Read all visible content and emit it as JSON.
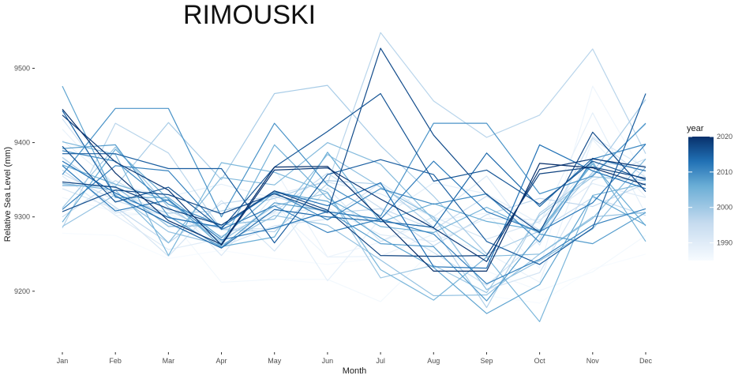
{
  "chart_data": {
    "type": "line",
    "title": "RIMOUSKI",
    "xlabel": "Month",
    "ylabel": "Relative Sea Level (mm)",
    "categories": [
      "Jan",
      "Feb",
      "Mar",
      "Apr",
      "May",
      "Jun",
      "Jul",
      "Aug",
      "Sep",
      "Oct",
      "Nov",
      "Dec"
    ],
    "ylim": [
      9135,
      9560
    ],
    "yticks": [
      9200,
      9300,
      9400,
      9500
    ],
    "grid": false,
    "legend": {
      "title": "year",
      "position": "right",
      "type": "colorbar",
      "range": [
        1985,
        2020
      ],
      "ticks": [
        1990,
        2000,
        2010,
        2020
      ],
      "color_low": "#f7fbff",
      "color_high": "#08306b"
    },
    "series": [
      {
        "year": 1985,
        "values": [
          9278,
          9275,
          9244,
          9255,
          9244,
          9236,
          9245,
          9245,
          9194,
          9184,
          9230,
          9250
        ]
      },
      {
        "year": 1986,
        "values": [
          9326,
          9307,
          9300,
          9212,
          9216,
          9216,
          9186,
          9256,
          9227,
          9201,
          9226,
          9275
        ]
      },
      {
        "year": 1987,
        "values": [
          9380,
          9302,
          9305,
          9268,
          9313,
          9246,
          9266,
          9295,
          9305,
          9231,
          9476,
          9353
        ]
      },
      {
        "year": 1988,
        "values": [
          9418,
          9342,
          9289,
          9265,
          9365,
          9246,
          9247,
          9277,
          9252,
          9212,
          9404,
          9327
        ]
      },
      {
        "year": 1989,
        "values": [
          9403,
          9344,
          9327,
          9344,
          9325,
          9214,
          9298,
          9346,
          9331,
          9291,
          9440,
          9304
        ]
      },
      {
        "year": 1990,
        "values": [
          9355,
          9302,
          9256,
          9271,
          9305,
          9312,
          9276,
          9267,
          9298,
          9296,
          9345,
          9326
        ]
      },
      {
        "year": 1991,
        "values": [
          9370,
          9305,
          9322,
          9248,
          9330,
          9347,
          9331,
          9300,
          9355,
          9262,
          9408,
          9366
        ]
      },
      {
        "year": 1992,
        "values": [
          9338,
          9311,
          9247,
          9322,
          9254,
          9339,
          9267,
          9300,
          9270,
          9294,
          9372,
          9369
        ]
      },
      {
        "year": 1993,
        "values": [
          9432,
          9338,
          9300,
          9260,
          9288,
          9297,
          9346,
          9299,
          9202,
          9225,
          9349,
          9378
        ]
      },
      {
        "year": 1994,
        "values": [
          9358,
          9322,
          9300,
          9284,
          9284,
          9307,
          9295,
          9252,
          9208,
          9270,
          9406,
          9353
        ]
      },
      {
        "year": 1995,
        "values": [
          9300,
          9349,
          9309,
          9274,
          9307,
          9359,
          9312,
          9283,
          9328,
          9282,
          9326,
          9302
        ]
      },
      {
        "year": 1996,
        "values": [
          9363,
          9313,
          9265,
          9318,
          9328,
          9305,
          9311,
          9261,
          9303,
          9325,
          9314,
          9345
        ]
      },
      {
        "year": 1997,
        "values": [
          9285,
          9426,
          9386,
          9283,
          9280,
          9345,
          9548,
          9456,
          9407,
          9437,
          9526,
          9385
        ]
      },
      {
        "year": 1998,
        "values": [
          9380,
          9327,
          9305,
          9308,
          9325,
          9349,
          9344,
          9286,
          9178,
          9305,
          9357,
          9425
        ]
      },
      {
        "year": 1999,
        "values": [
          9343,
          9341,
          9427,
          9350,
          9466,
          9477,
          9396,
          9328,
          9250,
          9281,
          9360,
          9458
        ]
      },
      {
        "year": 2000,
        "values": [
          9312,
          9394,
          9313,
          9267,
          9315,
          9332,
          9218,
          9235,
          9198,
          9302,
          9354,
          9349
        ]
      },
      {
        "year": 2001,
        "values": [
          9287,
          9330,
          9280,
          9262,
          9302,
          9289,
          9242,
          9194,
          9195,
          9250,
          9300,
          9306
        ]
      },
      {
        "year": 2002,
        "values": [
          9342,
          9341,
          9287,
          9289,
          9297,
          9384,
          9340,
          9300,
          9202,
          9241,
          9284,
          9367
        ]
      },
      {
        "year": 2003,
        "values": [
          9345,
          9336,
          9265,
          9353,
          9343,
          9400,
          9371,
          9296,
          9247,
          9250,
          9298,
          9378
        ]
      },
      {
        "year": 2004,
        "values": [
          9401,
          9384,
          9248,
          9373,
          9360,
          9333,
          9229,
          9188,
          9246,
          9159,
          9329,
          9345
        ]
      },
      {
        "year": 2005,
        "values": [
          9370,
          9344,
          9322,
          9264,
          9397,
          9325,
          9287,
          9279,
          9313,
          9278,
          9374,
          9267
        ]
      },
      {
        "year": 2006,
        "values": [
          9293,
          9391,
          9324,
          9260,
          9273,
          9387,
          9293,
          9318,
          9294,
          9282,
          9371,
          9288
        ]
      },
      {
        "year": 2007,
        "values": [
          9476,
          9326,
          9326,
          9272,
          9333,
          9321,
          9272,
          9232,
          9170,
          9209,
          9328,
          9289
        ]
      },
      {
        "year": 2008,
        "values": [
          9392,
          9397,
          9301,
          9259,
          9319,
          9308,
          9264,
          9260,
          9187,
          9277,
          9264,
          9306
        ]
      },
      {
        "year": 2009,
        "values": [
          9357,
          9446,
          9446,
          9300,
          9426,
          9343,
          9301,
          9426,
          9426,
          9331,
          9355,
          9426
        ]
      },
      {
        "year": 2010,
        "values": [
          9389,
          9375,
          9317,
          9289,
          9333,
          9296,
          9338,
          9317,
          9331,
          9266,
          9378,
          9398
        ]
      },
      {
        "year": 2011,
        "values": [
          9310,
          9369,
          9362,
          9283,
          9315,
          9279,
          9297,
          9277,
          9210,
          9243,
          9289,
          9311
        ]
      },
      {
        "year": 2012,
        "values": [
          9369,
          9308,
          9323,
          9269,
          9285,
          9307,
          9297,
          9375,
          9307,
          9280,
          9319,
          9398
        ]
      },
      {
        "year": 2013,
        "values": [
          9375,
          9332,
          9299,
          9286,
          9335,
          9315,
          9346,
          9233,
          9231,
          9397,
          9362,
          9338
        ]
      },
      {
        "year": 2014,
        "values": [
          9443,
          9328,
          9292,
          9258,
          9310,
          9300,
          9294,
          9286,
          9386,
          9314,
          9379,
          9362
        ]
      },
      {
        "year": 2015,
        "values": [
          9385,
          9385,
          9365,
          9365,
          9265,
          9357,
          9377,
          9357,
          9267,
          9236,
          9285,
          9466
        ]
      },
      {
        "year": 2016,
        "values": [
          9395,
          9320,
          9340,
          9284,
          9367,
          9415,
          9466,
          9348,
          9363,
          9317,
          9375,
          9350
        ]
      },
      {
        "year": 2017,
        "values": [
          9307,
          9336,
          9330,
          9304,
          9331,
          9306,
          9527,
          9410,
          9330,
          9279,
          9414,
          9334
        ]
      },
      {
        "year": 2018,
        "values": [
          9347,
          9340,
          9311,
          9289,
          9335,
          9309,
          9248,
          9247,
          9248,
          9358,
          9367,
          9352
        ]
      },
      {
        "year": 2019,
        "values": [
          9437,
          9374,
          9336,
          9262,
          9363,
          9366,
          9324,
          9285,
          9240,
          9364,
          9378,
          9367
        ]
      },
      {
        "year": 2020,
        "values": [
          9445,
          9359,
          9295,
          9263,
          9367,
          9368,
          9298,
          9227,
          9227,
          9372,
          9366,
          9343
        ]
      }
    ]
  }
}
